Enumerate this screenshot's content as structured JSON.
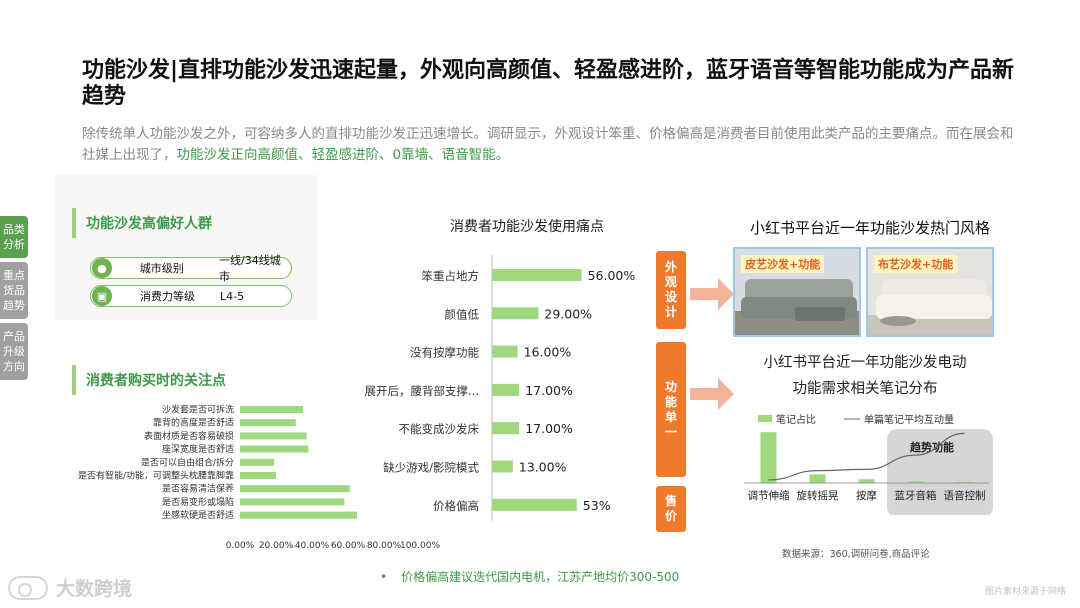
{
  "title": "功能沙发|直排功能沙发迅速起量，外观向高颜值、轻盈感进阶，蓝牙语音等智能功能成为产品新趋势",
  "subtitle": {
    "text": "除传统单人功能沙发之外，可容纳多人的直排功能沙发正迅速增长。调研显示，外观设计笨重、价格偏高是消费者目前使用此类产品的主要痛点。而在展会和社媒上出现了，",
    "highlight": "功能沙发正向高颜值、轻盈感进阶、0靠墙、语音智能。"
  },
  "side_tabs": [
    {
      "label": "品类分析",
      "active": true
    },
    {
      "label": "重点货品趋势",
      "active": false
    },
    {
      "label": "产品升级方向",
      "active": false
    }
  ],
  "audience": {
    "heading": "功能沙发高偏好人群",
    "rows": [
      {
        "icon": "person-icon",
        "label": "城市级别",
        "value": "一线/34线城市"
      },
      {
        "icon": "wallet-icon",
        "label": "消费力等级",
        "value": "L4-5"
      }
    ]
  },
  "concern_heading": "消费者购买时的关注点",
  "colors": {
    "accent_green": "#3c9a4a",
    "bar_green": "#9fd87f",
    "tag_orange": "#f07a2c",
    "arrow": "#f3b49a",
    "trend_gray": "#c8c8c8"
  },
  "tags": {
    "appearance": "外观设计",
    "function": "功能单一",
    "price": "售价"
  },
  "photos": [
    {
      "label": "皮艺沙发+功能"
    },
    {
      "label": "布艺沙发+功能"
    }
  ],
  "xhs_style_title": "小红书平台近一年功能沙发热门风格",
  "footer_note": "价格偏高建议迭代国内电机，江苏产地均价300-500",
  "footer_bullet": "•",
  "logo": "大数跨境",
  "credit": "图片素材来源于网络",
  "source": "数据来源：360,调研问卷,商品评论",
  "chart_data": [
    {
      "type": "bar",
      "orientation": "horizontal",
      "title": "",
      "categories": [
        "沙发套是否可拆洗",
        "靠背的高度是否舒适",
        "表面材质是否容易破损",
        "座深宽度是否舒适",
        "是否可以自由组合/拆分",
        "是否有智能/功能，可调整头枕腰靠脚靠",
        "是否容易清洁保养",
        "是否易变形或塌陷",
        "坐感软硬是否舒适"
      ],
      "values": [
        35,
        31,
        37,
        38,
        19,
        20,
        61,
        58,
        65
      ],
      "xlim": [
        0,
        100
      ],
      "xticks": [
        "0.00%",
        "20.00%",
        "40.00%",
        "60.00%",
        "80.00%",
        "100.00%"
      ]
    },
    {
      "type": "bar",
      "orientation": "horizontal",
      "title": "消费者功能沙发使用痛点",
      "categories": [
        "笨重占地方",
        "颜值低",
        "没有按摩功能",
        "展开后，腰背部支撑...",
        "不能变成沙发床",
        "缺少游戏/影院模式",
        "价格偏高"
      ],
      "values": [
        56,
        29,
        16,
        17,
        17,
        13,
        53
      ],
      "value_labels": [
        "56.00%",
        "29.00%",
        "16.00%",
        "17.00%",
        "17.00%",
        "13.00%",
        "53%"
      ],
      "xlim": [
        0,
        100
      ]
    },
    {
      "type": "bar",
      "title": "小红书平台近一年功能沙发电动功能需求相关笔记分布",
      "categories": [
        "调节伸缩",
        "旋转摇晃",
        "按摩",
        "蓝牙音箱",
        "语音控制"
      ],
      "series": [
        {
          "name": "笔记占比",
          "type": "bar",
          "values": [
            82,
            14,
            6,
            3,
            2
          ]
        },
        {
          "name": "单篇笔记平均互动量",
          "type": "line",
          "values": [
            5,
            20,
            22,
            45,
            80
          ]
        }
      ],
      "annotation": "趋势功能",
      "highlight_categories": [
        "蓝牙音箱",
        "语音控制"
      ],
      "ylim": [
        0,
        100
      ]
    }
  ]
}
